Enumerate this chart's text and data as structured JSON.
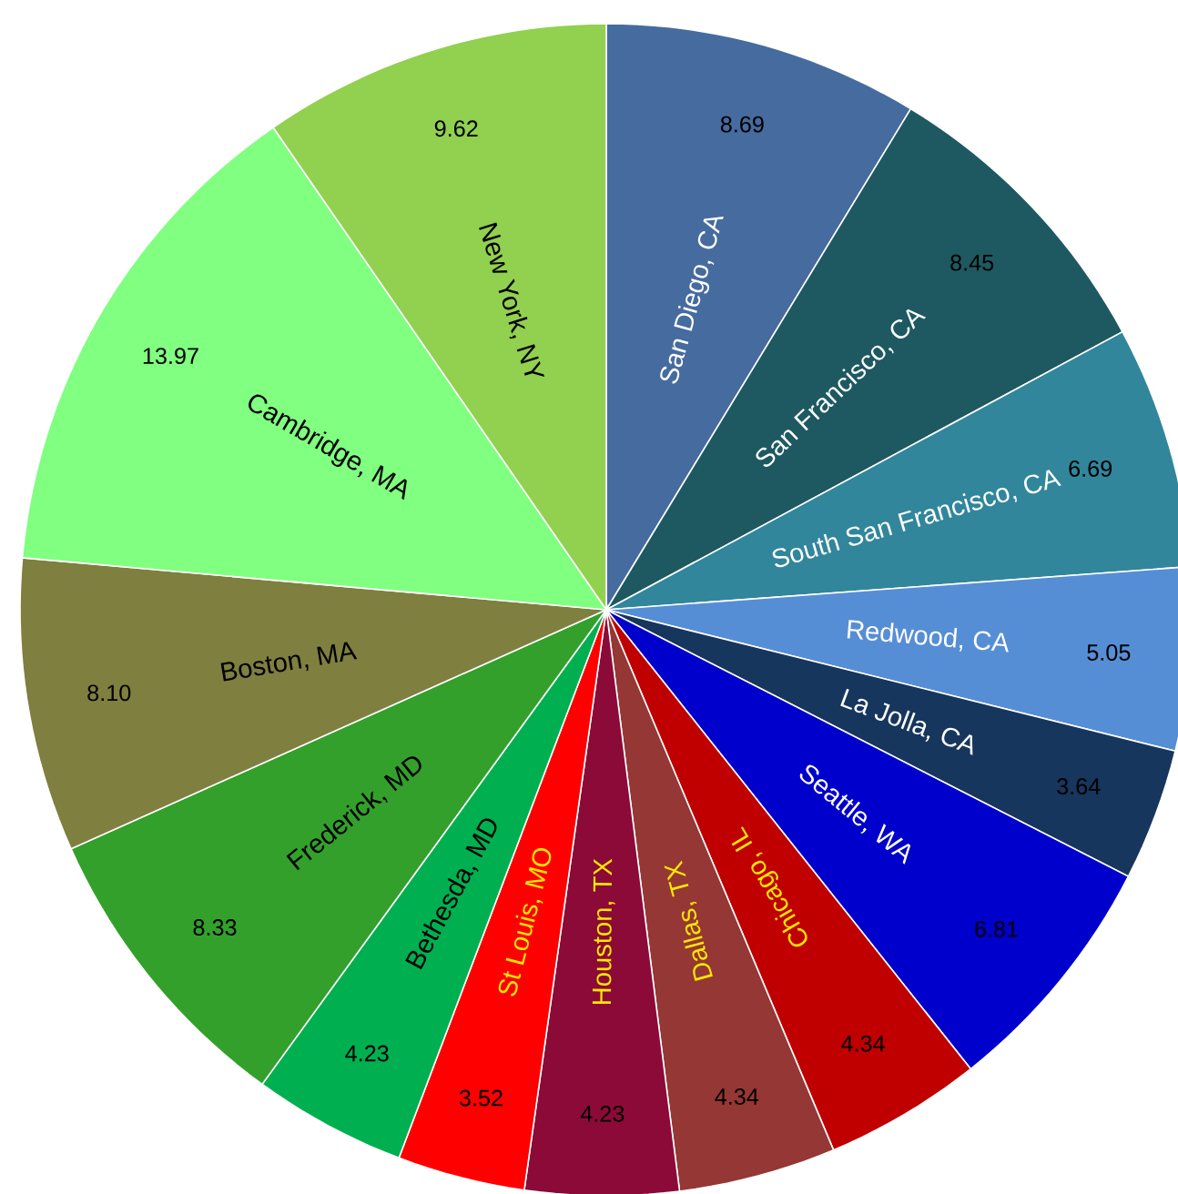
{
  "chart_data": {
    "type": "pie",
    "value_labels": [
      "8.69",
      "8.45",
      "6.69",
      "5.05",
      "3.64",
      "6.81",
      "4.34",
      "4.34",
      "4.23",
      "3.52",
      "4.23",
      "8.33",
      "8.10",
      "13.97",
      "9.62"
    ],
    "categories": [
      "San Diego, CA",
      "San Francisco, CA",
      "South San Francisco, CA",
      "Redwood, CA",
      "La Jolla, CA",
      "Seattle, WA",
      "Chicago, IL",
      "Dallas, TX",
      "Houston, TX",
      "St Louis, MO",
      "Bethesda, MD",
      "Frederick, MD",
      "Boston, MA",
      "Cambridge, MA",
      "New York, NY"
    ],
    "values": [
      8.69,
      8.45,
      6.69,
      5.05,
      3.64,
      6.81,
      4.34,
      4.34,
      4.23,
      3.52,
      4.23,
      8.33,
      8.1,
      13.97,
      9.62
    ],
    "colors": [
      "#466b9e",
      "#1e5962",
      "#31869b",
      "#568ed6",
      "#17365d",
      "#0000cc",
      "#c00000",
      "#953735",
      "#8c0a38",
      "#ff0000",
      "#00b050",
      "#33a02c",
      "#7f7f3f",
      "#80ff80",
      "#92d050"
    ]
  }
}
